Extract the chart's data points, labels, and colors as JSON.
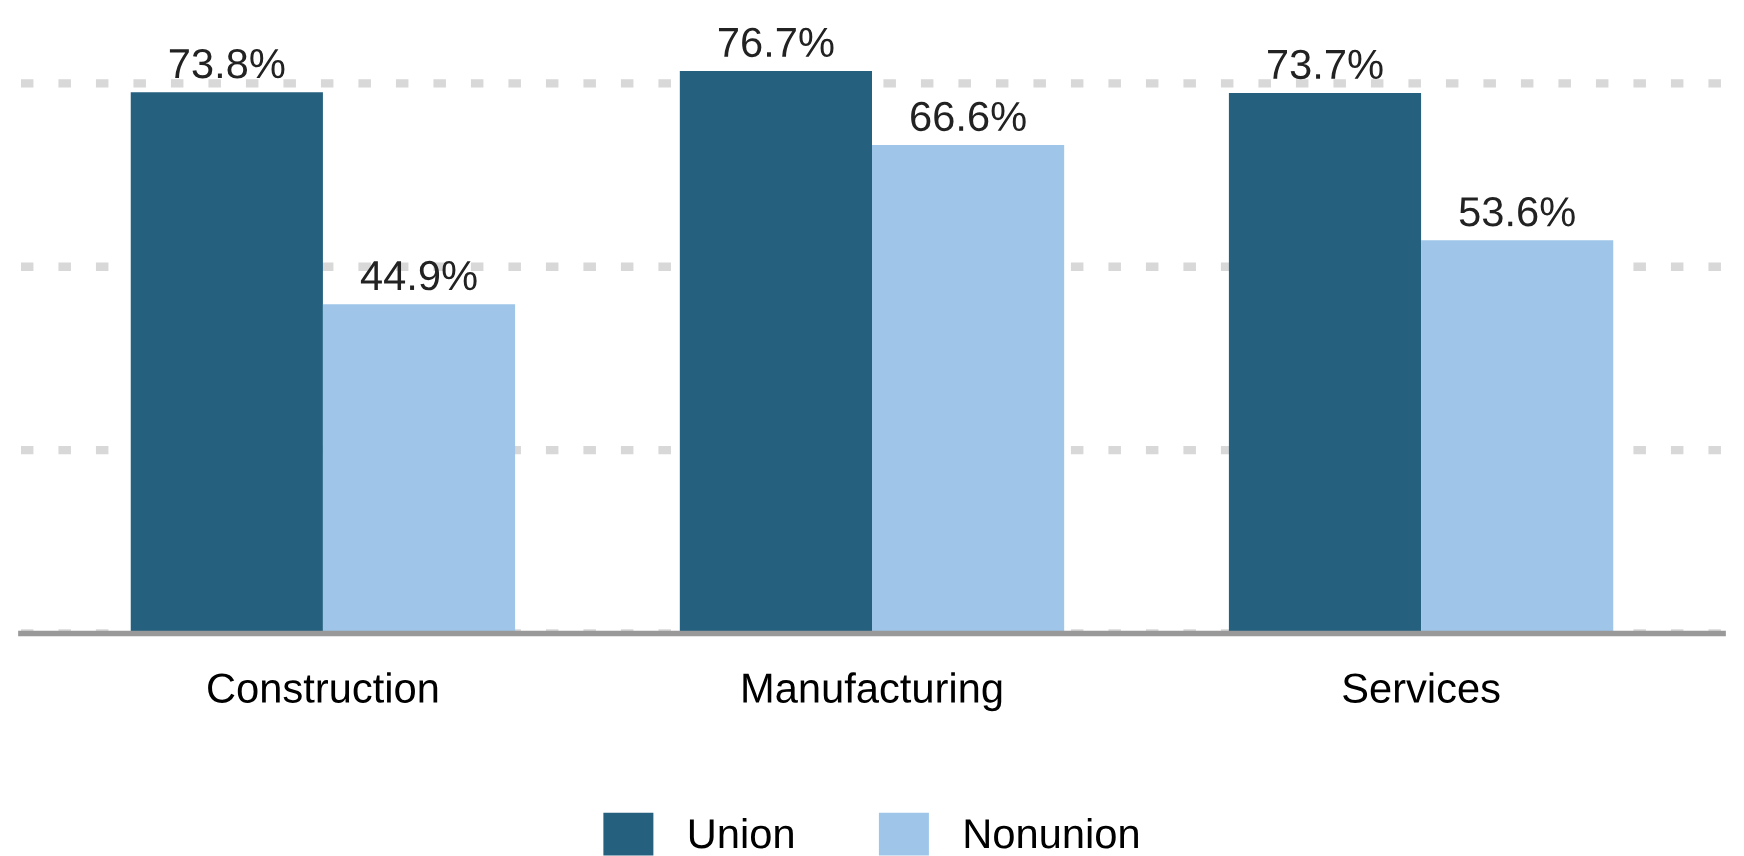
{
  "chart_data": {
    "type": "bar",
    "categories": [
      "Construction",
      "Manufacturing",
      "Services"
    ],
    "series": [
      {
        "name": "Union",
        "color": "#25617f",
        "values": [
          73.8,
          76.7,
          73.7
        ],
        "value_labels": [
          "73.8%",
          "76.7%",
          "73.7%"
        ]
      },
      {
        "name": "Nonunion",
        "color": "#9fc6e8",
        "values": [
          44.9,
          66.6,
          53.6
        ],
        "value_labels": [
          "44.9%",
          "66.6%",
          "53.6%"
        ]
      }
    ],
    "tick_labels": "x",
    "grid": "y",
    "line_style": "dotted",
    "legend": "bottom"
  }
}
